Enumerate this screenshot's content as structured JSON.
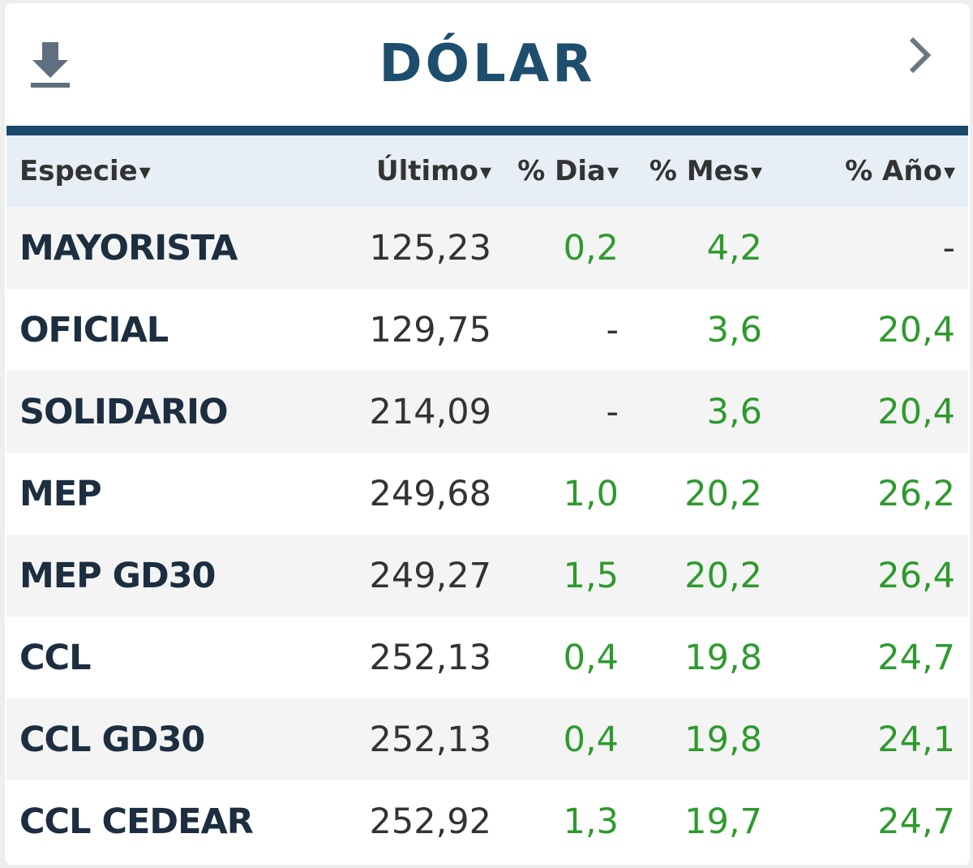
{
  "header": {
    "title": "DÓLAR"
  },
  "table": {
    "columns": [
      "Especie",
      "Último",
      "% Dia",
      "% Mes",
      "% Año"
    ],
    "rows": [
      [
        "MAYORISTA",
        "125,23",
        "0,2",
        "4,2",
        "-"
      ],
      [
        "OFICIAL",
        "129,75",
        "-",
        "3,6",
        "20,4"
      ],
      [
        "SOLIDARIO",
        "214,09",
        "-",
        "3,6",
        "20,4"
      ],
      [
        "MEP",
        "249,68",
        "1,0",
        "20,2",
        "26,2"
      ],
      [
        "MEP GD30",
        "249,27",
        "1,5",
        "20,2",
        "26,4"
      ],
      [
        "CCL",
        "252,13",
        "0,4",
        "19,8",
        "24,7"
      ],
      [
        "CCL GD30",
        "252,13",
        "0,4",
        "19,8",
        "24,1"
      ],
      [
        "CCL CEDEAR",
        "252,92",
        "1,3",
        "19,7",
        "24,7"
      ]
    ]
  }
}
